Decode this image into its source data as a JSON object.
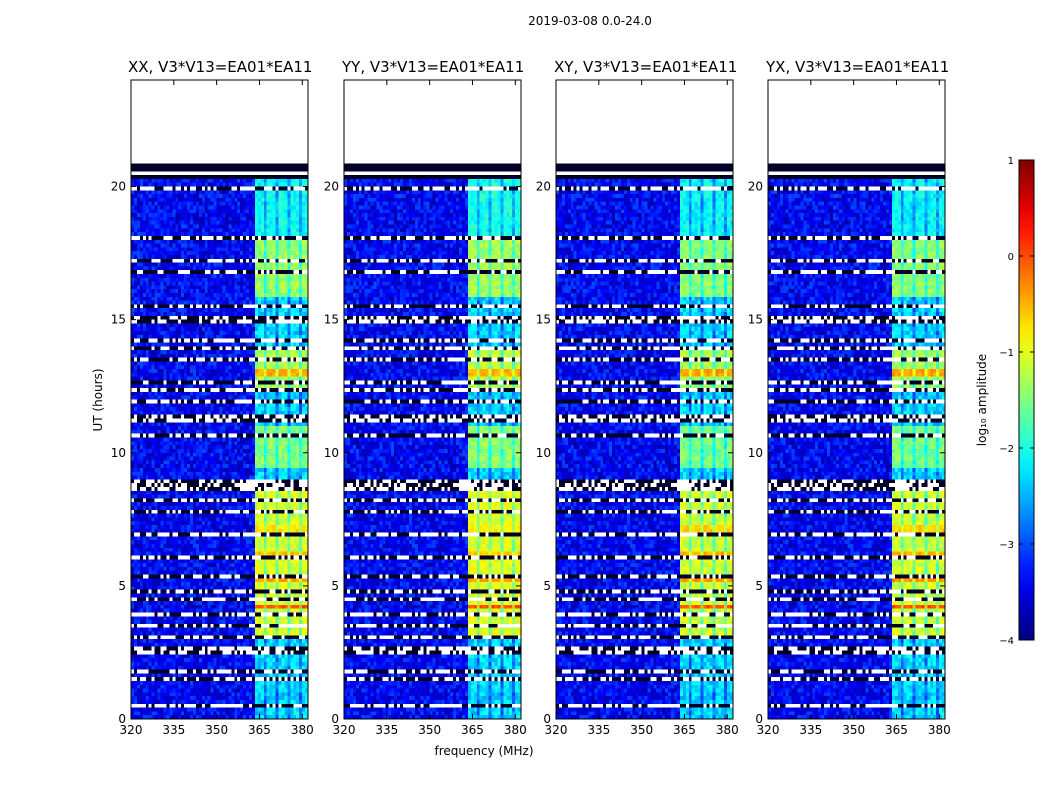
{
  "chart_data": {
    "type": "heatmap",
    "suptitle": "2019-03-08 0.0-24.0",
    "xlabel": "frequency (MHz)",
    "ylabel": "UT (hours)",
    "xlim": [
      320,
      382
    ],
    "ylim": [
      0,
      24
    ],
    "xticks": [
      320,
      335,
      350,
      365,
      380
    ],
    "yticks": [
      0,
      5,
      10,
      15,
      20
    ],
    "data_end_hour": 21.0,
    "flagged_hours": [
      0.5,
      1.5,
      1.8,
      2.3,
      2.45,
      2.6,
      3.1,
      3.5,
      3.7,
      3.9,
      4.5,
      4.8,
      5.0,
      5.4,
      5.85,
      6.1,
      6.9,
      7.3,
      7.8,
      8.2,
      8.6,
      8.75,
      8.9,
      10.6,
      11.2,
      11.35,
      11.9,
      12.15,
      12.35,
      12.55,
      12.65,
      13.5,
      13.9,
      14.2,
      14.9,
      15.05,
      15.3,
      15.5,
      15.7,
      15.85,
      16.8,
      17.0,
      17.2,
      17.55,
      17.85,
      18.1,
      18.7,
      19.3,
      19.9
    ],
    "bright_band_mhz": [
      363,
      382
    ],
    "bright_hours": [
      [
        3.2,
        8.5,
        -1.0
      ],
      [
        9.5,
        11.0,
        -1.4
      ],
      [
        12.5,
        14.0,
        -1.2
      ],
      [
        15.9,
        18.0,
        -1.3
      ],
      [
        18.0,
        20.3,
        -2.0
      ]
    ],
    "flare_events": [
      [
        4.15,
        4.35,
        0.0
      ],
      [
        5.1,
        5.3,
        -0.4
      ],
      [
        6.1,
        6.3,
        -0.6
      ],
      [
        7.05,
        7.25,
        -0.8
      ],
      [
        12.9,
        13.2,
        -0.5
      ]
    ],
    "panels": [
      {
        "name": "XX",
        "title": "XX, V3*V13=EA01*EA11",
        "gain": 0.9,
        "band_left": 0.63
      },
      {
        "name": "YY",
        "title": "YY, V3*V13=EA01*EA11",
        "gain": 1.0,
        "band_left": 0.63
      },
      {
        "name": "XY",
        "title": "XY, V3*V13=EA01*EA11",
        "gain": 0.8,
        "band_left": 0.63
      },
      {
        "name": "YX",
        "title": "YX, V3*V13=EA01*EA11",
        "gain": 0.8,
        "band_left": 0.63
      }
    ],
    "colorbar": {
      "label": "log₁₀ amplitude",
      "min": -4,
      "max": 1,
      "ticks": [
        1,
        0,
        -1,
        -2,
        -3,
        -4
      ],
      "tick_labels": [
        "1",
        "0",
        "−1",
        "−2",
        "−3",
        "−4"
      ],
      "colormap": "jet"
    },
    "colors": {
      "axes": "#000000",
      "flag": "#ffffff",
      "flag_dark": "#000060"
    }
  }
}
